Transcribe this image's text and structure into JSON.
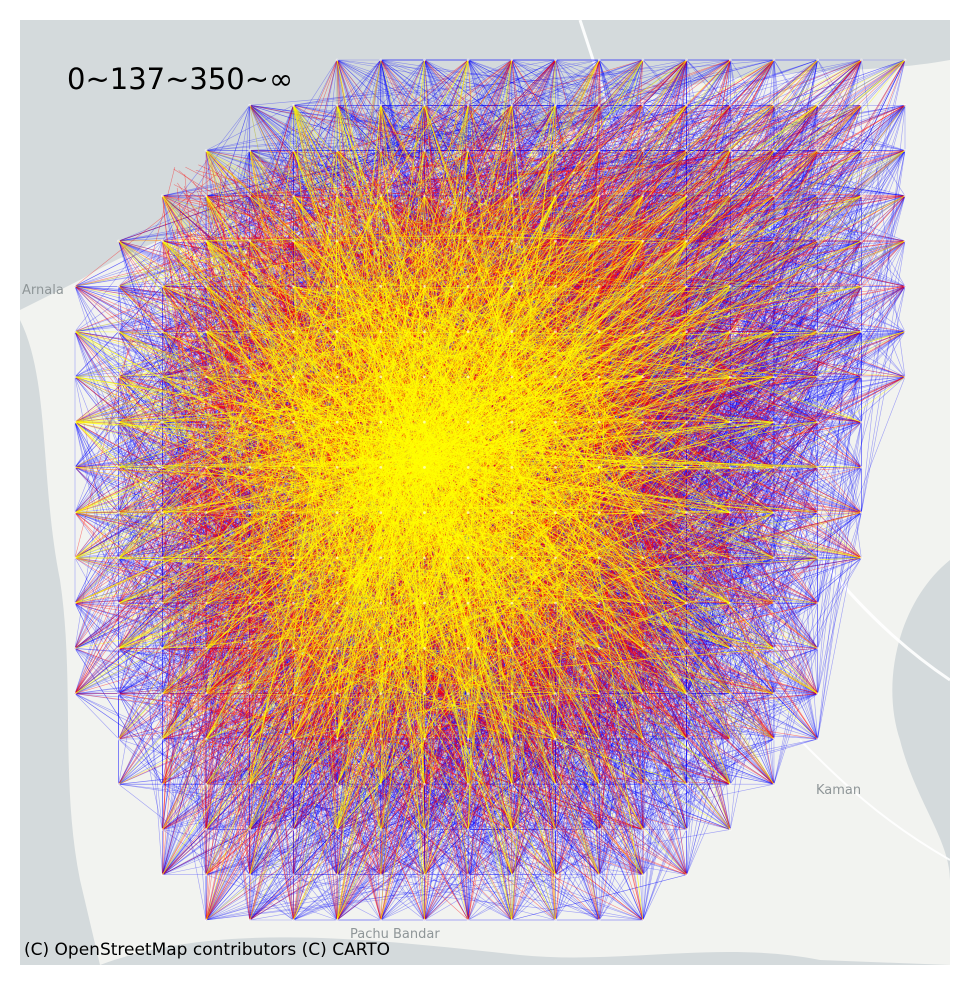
{
  "legend": {
    "thresholds_label": "0~137~350~∞"
  },
  "attribution": "(C) OpenStreetMap contributors (C) CARTO",
  "places": {
    "arnala": "Arnala",
    "kaman": "Kaman",
    "pachu_bandar": "Pachu Bandar"
  },
  "colors": {
    "water": "#d4dadc",
    "land": "#f2f3f0",
    "road": "#ffffff",
    "band_low": "#0000ff",
    "band_mid": "#ff0000",
    "band_high": "#ffff00"
  },
  "network": {
    "grid_columns": 20,
    "grid_rows": 20,
    "edge_bands": [
      "low",
      "mid",
      "high"
    ]
  }
}
